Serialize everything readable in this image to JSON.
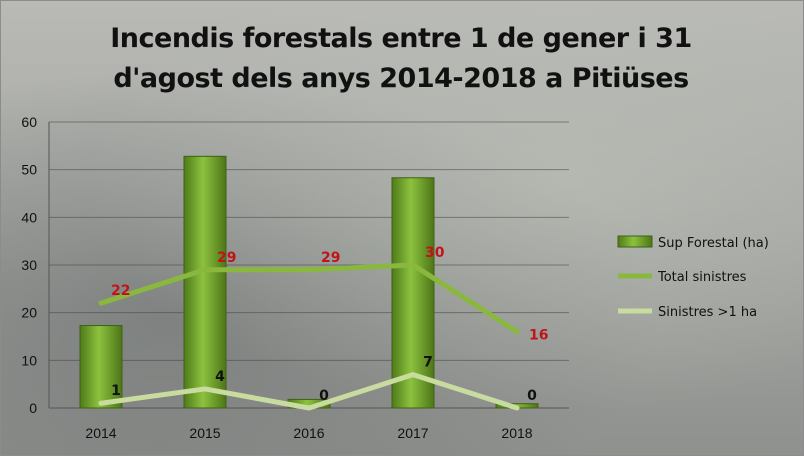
{
  "chart_data": {
    "type": "bar",
    "title": "Incendis forestals entre 1 de gener i 31 d'agost dels anys 2014-2018 a Pitiüses",
    "categories": [
      "2014",
      "2015",
      "2016",
      "2017",
      "2018"
    ],
    "ylim": [
      0,
      60
    ],
    "yticks": [
      0,
      10,
      20,
      30,
      40,
      50,
      60
    ],
    "grid": true,
    "legend_position": "right",
    "series": [
      {
        "name": "Sup Forestal (ha)",
        "type": "bar",
        "values": [
          17.3,
          52.8,
          1.8,
          48.3,
          0.9
        ],
        "color": "#6f9a2a"
      },
      {
        "name": "Total sinistres",
        "type": "line",
        "values": [
          22,
          29,
          29,
          30,
          16
        ],
        "color": "#8ab83e",
        "labels": [
          "22",
          "29",
          "29",
          "30",
          "16"
        ],
        "label_color": "#c0141a"
      },
      {
        "name": "Sinistres >1 ha",
        "type": "line",
        "values": [
          1,
          4,
          0,
          7,
          0
        ],
        "color": "#c8dca0",
        "labels": [
          "1",
          "4",
          "0",
          "7",
          "0"
        ],
        "label_color": "#111111"
      }
    ]
  }
}
